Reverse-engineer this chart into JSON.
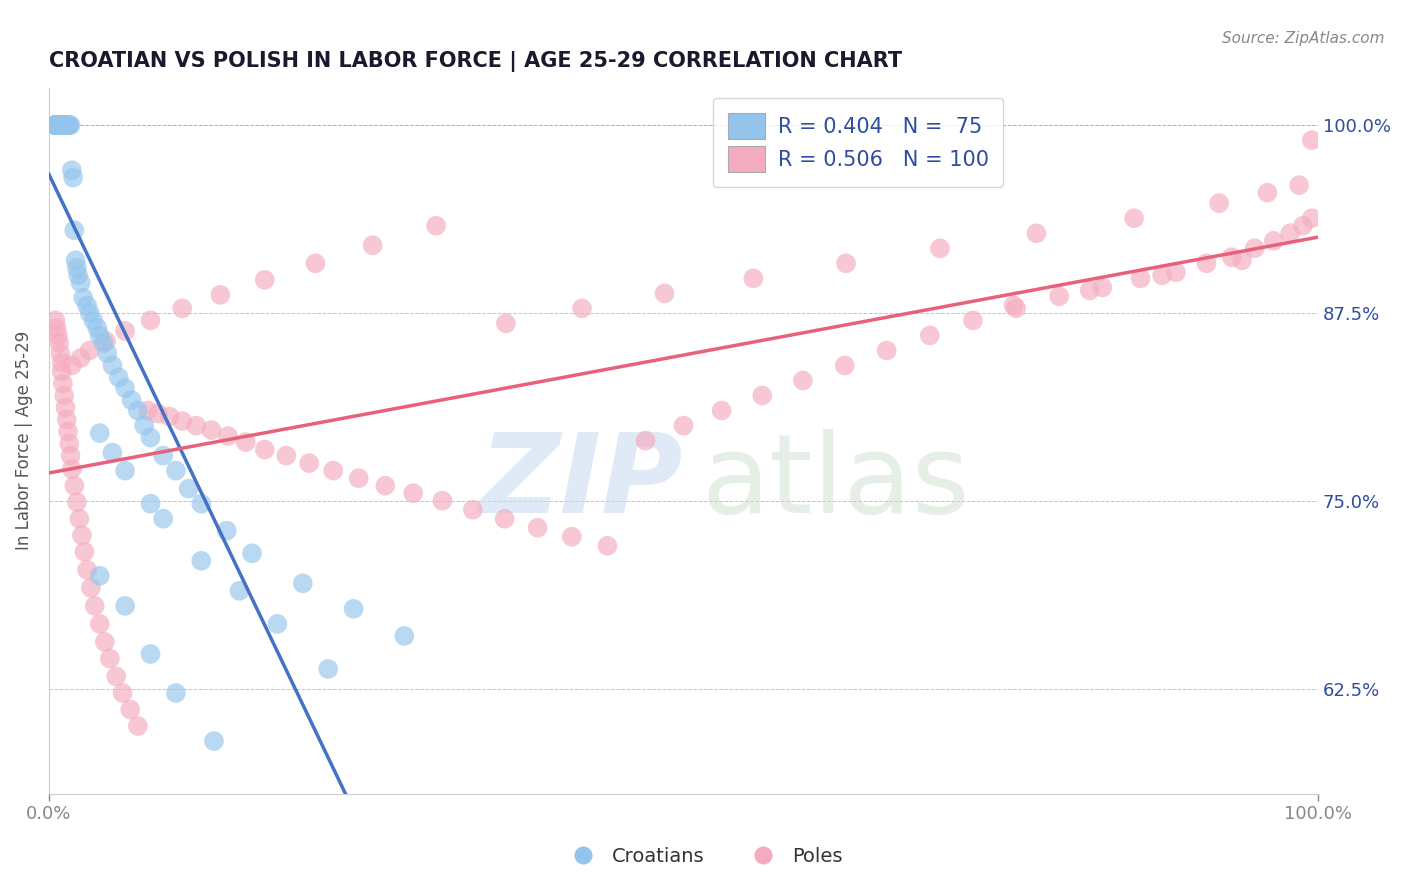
{
  "title": "CROATIAN VS POLISH IN LABOR FORCE | AGE 25-29 CORRELATION CHART",
  "source": "Source: ZipAtlas.com",
  "ylabel": "In Labor Force | Age 25-29",
  "xlim": [
    0.0,
    1.0
  ],
  "ylim": [
    0.555,
    1.025
  ],
  "yticks": [
    0.625,
    0.75,
    0.875,
    1.0
  ],
  "ytick_labels": [
    "62.5%",
    "75.0%",
    "87.5%",
    "100.0%"
  ],
  "blue_color": "#94C4EC",
  "pink_color": "#F4ABBE",
  "blue_line_color": "#4472C4",
  "pink_line_color": "#E8607A",
  "R_blue": 0.404,
  "N_blue": 75,
  "R_pink": 0.506,
  "N_pink": 100,
  "legend_color": "#2E4DA0",
  "blue_x": [
    0.005,
    0.005,
    0.005,
    0.005,
    0.005,
    0.005,
    0.005,
    0.005,
    0.007,
    0.007,
    0.008,
    0.008,
    0.009,
    0.009,
    0.01,
    0.01,
    0.01,
    0.01,
    0.01,
    0.011,
    0.011,
    0.012,
    0.012,
    0.013,
    0.013,
    0.014,
    0.015,
    0.015,
    0.016,
    0.017,
    0.018,
    0.019,
    0.02,
    0.021,
    0.022,
    0.023,
    0.025,
    0.027,
    0.03,
    0.032,
    0.035,
    0.038,
    0.04,
    0.043,
    0.046,
    0.05,
    0.055,
    0.06,
    0.065,
    0.07,
    0.075,
    0.08,
    0.09,
    0.1,
    0.11,
    0.12,
    0.14,
    0.16,
    0.2,
    0.24,
    0.28,
    0.04,
    0.05,
    0.06,
    0.08,
    0.09,
    0.12,
    0.15,
    0.18,
    0.22,
    0.04,
    0.06,
    0.08,
    0.1,
    0.13
  ],
  "blue_y": [
    1.0,
    1.0,
    1.0,
    1.0,
    1.0,
    1.0,
    1.0,
    1.0,
    1.0,
    1.0,
    1.0,
    1.0,
    1.0,
    1.0,
    1.0,
    1.0,
    1.0,
    1.0,
    1.0,
    1.0,
    1.0,
    1.0,
    1.0,
    1.0,
    1.0,
    1.0,
    1.0,
    1.0,
    1.0,
    1.0,
    0.97,
    0.965,
    0.93,
    0.91,
    0.905,
    0.9,
    0.895,
    0.885,
    0.88,
    0.875,
    0.87,
    0.865,
    0.86,
    0.855,
    0.848,
    0.84,
    0.832,
    0.825,
    0.817,
    0.81,
    0.8,
    0.792,
    0.78,
    0.77,
    0.758,
    0.748,
    0.73,
    0.715,
    0.695,
    0.678,
    0.66,
    0.795,
    0.782,
    0.77,
    0.748,
    0.738,
    0.71,
    0.69,
    0.668,
    0.638,
    0.7,
    0.68,
    0.648,
    0.622,
    0.59
  ],
  "pink_x": [
    0.005,
    0.006,
    0.007,
    0.008,
    0.009,
    0.01,
    0.01,
    0.011,
    0.012,
    0.013,
    0.014,
    0.015,
    0.016,
    0.017,
    0.018,
    0.02,
    0.022,
    0.024,
    0.026,
    0.028,
    0.03,
    0.033,
    0.036,
    0.04,
    0.044,
    0.048,
    0.053,
    0.058,
    0.064,
    0.07,
    0.078,
    0.086,
    0.095,
    0.105,
    0.116,
    0.128,
    0.141,
    0.155,
    0.17,
    0.187,
    0.205,
    0.224,
    0.244,
    0.265,
    0.287,
    0.31,
    0.334,
    0.359,
    0.385,
    0.412,
    0.44,
    0.47,
    0.5,
    0.53,
    0.562,
    0.594,
    0.627,
    0.66,
    0.694,
    0.728,
    0.762,
    0.796,
    0.83,
    0.86,
    0.888,
    0.912,
    0.932,
    0.95,
    0.965,
    0.978,
    0.988,
    0.995,
    0.018,
    0.025,
    0.032,
    0.045,
    0.06,
    0.08,
    0.105,
    0.135,
    0.17,
    0.21,
    0.255,
    0.305,
    0.36,
    0.42,
    0.485,
    0.555,
    0.628,
    0.702,
    0.778,
    0.855,
    0.922,
    0.96,
    0.985,
    0.76,
    0.82,
    0.877,
    0.94,
    0.995
  ],
  "pink_y": [
    0.87,
    0.865,
    0.86,
    0.855,
    0.848,
    0.842,
    0.836,
    0.828,
    0.82,
    0.812,
    0.804,
    0.796,
    0.788,
    0.78,
    0.771,
    0.76,
    0.749,
    0.738,
    0.727,
    0.716,
    0.704,
    0.692,
    0.68,
    0.668,
    0.656,
    0.645,
    0.633,
    0.622,
    0.611,
    0.6,
    0.81,
    0.808,
    0.806,
    0.803,
    0.8,
    0.797,
    0.793,
    0.789,
    0.784,
    0.78,
    0.775,
    0.77,
    0.765,
    0.76,
    0.755,
    0.75,
    0.744,
    0.738,
    0.732,
    0.726,
    0.72,
    0.79,
    0.8,
    0.81,
    0.82,
    0.83,
    0.84,
    0.85,
    0.86,
    0.87,
    0.878,
    0.886,
    0.892,
    0.898,
    0.902,
    0.908,
    0.912,
    0.918,
    0.923,
    0.928,
    0.933,
    0.938,
    0.84,
    0.845,
    0.85,
    0.856,
    0.863,
    0.87,
    0.878,
    0.887,
    0.897,
    0.908,
    0.92,
    0.933,
    0.868,
    0.878,
    0.888,
    0.898,
    0.908,
    0.918,
    0.928,
    0.938,
    0.948,
    0.955,
    0.96,
    0.88,
    0.89,
    0.9,
    0.91,
    0.99
  ]
}
